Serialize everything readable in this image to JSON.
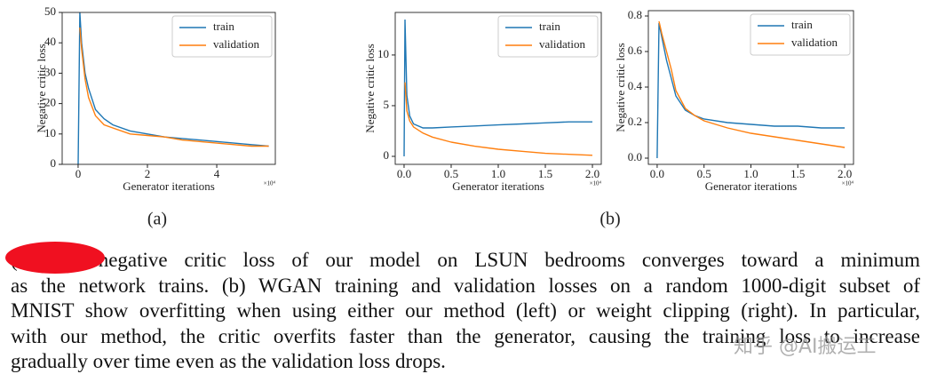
{
  "chart_data": [
    {
      "type": "line",
      "ylabel": "Negative critic loss",
      "xlabel": "Generator iterations",
      "x_offset_label": "×10⁴",
      "x": [
        0,
        0.05,
        0.1,
        0.2,
        0.3,
        0.5,
        0.75,
        1,
        1.5,
        2,
        2.5,
        3,
        3.5,
        4,
        4.5,
        5,
        5.5
      ],
      "series": [
        {
          "name": "train",
          "color": "#1f77b4",
          "values": [
            0,
            50,
            40,
            30,
            25,
            18,
            15,
            13,
            11,
            10,
            9,
            8.5,
            8,
            7.5,
            7,
            6.5,
            6
          ]
        },
        {
          "name": "validation",
          "color": "#ff7f0e",
          "values": [
            null,
            45,
            38,
            28,
            22,
            16,
            13,
            12,
            10,
            9.5,
            9,
            8,
            7.5,
            7,
            6.5,
            6,
            6
          ]
        }
      ],
      "xlim": [
        -0.46,
        5.69
      ],
      "xticks": [
        0,
        2,
        4
      ],
      "ylim": [
        0,
        50
      ],
      "yticks": [
        0,
        10,
        20,
        30,
        40,
        50
      ],
      "legend": "upper right"
    },
    {
      "type": "line",
      "ylabel": "Negative critic loss",
      "xlabel": "Generator iterations",
      "x_offset_label": "×10⁴",
      "x": [
        0,
        0.01,
        0.03,
        0.06,
        0.1,
        0.2,
        0.3,
        0.5,
        0.75,
        1,
        1.25,
        1.5,
        1.75,
        2.0
      ],
      "series": [
        {
          "name": "train",
          "color": "#1f77b4",
          "values": [
            0,
            13.5,
            6,
            4,
            3.2,
            2.8,
            2.8,
            2.9,
            3.0,
            3.1,
            3.2,
            3.3,
            3.4,
            3.4
          ]
        },
        {
          "name": "validation",
          "color": "#ff7f0e",
          "values": [
            null,
            7.3,
            4.5,
            3.5,
            2.9,
            2.3,
            1.9,
            1.4,
            1.0,
            0.7,
            0.5,
            0.3,
            0.2,
            0.1
          ]
        }
      ],
      "xlim": [
        -0.094,
        2.094
      ],
      "xticks": [
        {
          "value": 0,
          "label": "0.0"
        },
        0.5,
        {
          "value": 1,
          "label": "1.0"
        },
        1.5,
        {
          "value": 2,
          "label": "2.0"
        }
      ],
      "ylim": [
        -0.79,
        14.2
      ],
      "yticks": [
        0,
        5,
        10
      ],
      "legend": "upper right"
    },
    {
      "type": "line",
      "ylabel": "Negative critic loss",
      "xlabel": "Generator iterations",
      "x_offset_label": "×10⁴",
      "x": [
        0,
        0.02,
        0.05,
        0.1,
        0.15,
        0.2,
        0.3,
        0.4,
        0.5,
        0.75,
        1,
        1.25,
        1.5,
        1.75,
        2.0
      ],
      "series": [
        {
          "name": "train",
          "color": "#1f77b4",
          "values": [
            0,
            0.76,
            0.68,
            0.55,
            0.45,
            0.35,
            0.27,
            0.24,
            0.22,
            0.2,
            0.19,
            0.18,
            0.18,
            0.17,
            0.17
          ]
        },
        {
          "name": "validation",
          "color": "#ff7f0e",
          "values": [
            null,
            0.77,
            0.7,
            0.6,
            0.5,
            0.38,
            0.28,
            0.24,
            0.21,
            0.17,
            0.14,
            0.12,
            0.1,
            0.08,
            0.06
          ]
        }
      ],
      "xlim": [
        -0.094,
        2.094
      ],
      "xticks": [
        {
          "value": 0,
          "label": "0.0"
        },
        0.5,
        {
          "value": 1,
          "label": "1.0"
        },
        1.5,
        {
          "value": 2,
          "label": "2.0"
        }
      ],
      "ylim": [
        -0.035,
        0.83
      ],
      "yticks": [
        {
          "value": 0,
          "label": "0.0"
        },
        0.2,
        0.4,
        0.6,
        0.8
      ],
      "legend": "upper right"
    }
  ],
  "figure": {
    "labels": [
      "(a)",
      "(b)"
    ]
  },
  "caption_lines": [
    "(a) The negative critic loss of our model on LSUN bedrooms converges toward a minimum",
    "as the network trains. (b) WGAN training and validation losses on a random 1000-digit subset of",
    "MNIST show overfitting when using either our method (left) or weight clipping (right). In particular,",
    "with our method, the critic overfits faster than the generator, causing the training loss to increase",
    "gradually over time even as the validation loss drops."
  ],
  "watermark": "知乎 @AI搬运工"
}
